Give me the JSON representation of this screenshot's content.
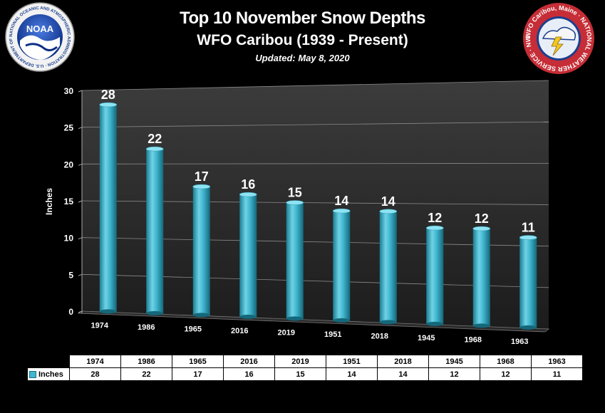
{
  "header": {
    "title": "Top 10 November Snow Depths",
    "subtitle": "WFO Caribou (1939 - Present)",
    "updated": "Updated:  May 8, 2020"
  },
  "logos": {
    "noaa_center": "NOAA",
    "noaa_ring": "NATIONAL OCEANIC AND ATMOSPHERIC ADMINISTRATION · U.S. DEPARTMENT OF COMMERCE",
    "nws_ring": "WFO Caribou, Maine · NATIONAL WEATHER SERVICE · NWS Caribou, Maine"
  },
  "colors": {
    "bar": "#41b6cf",
    "bar_dark": "#1a7c91",
    "background": "#000000"
  },
  "chart_data": {
    "type": "bar",
    "title": "Top 10 November Snow Depths",
    "subtitle": "WFO Caribou (1939 - Present)",
    "categories": [
      "1974",
      "1986",
      "1965",
      "2016",
      "2019",
      "1951",
      "2018",
      "1945",
      "1968",
      "1963"
    ],
    "series": [
      {
        "name": "Inches",
        "values": [
          28,
          22,
          17,
          16,
          15,
          14,
          14,
          12,
          12,
          11
        ]
      }
    ],
    "ylabel": "Inches",
    "xlabel": "",
    "ylim": [
      0,
      30
    ],
    "yticks": [
      0,
      5,
      10,
      15,
      20,
      25,
      30
    ],
    "grid": true,
    "legend": "data-table",
    "style": "3d-cylinder"
  }
}
